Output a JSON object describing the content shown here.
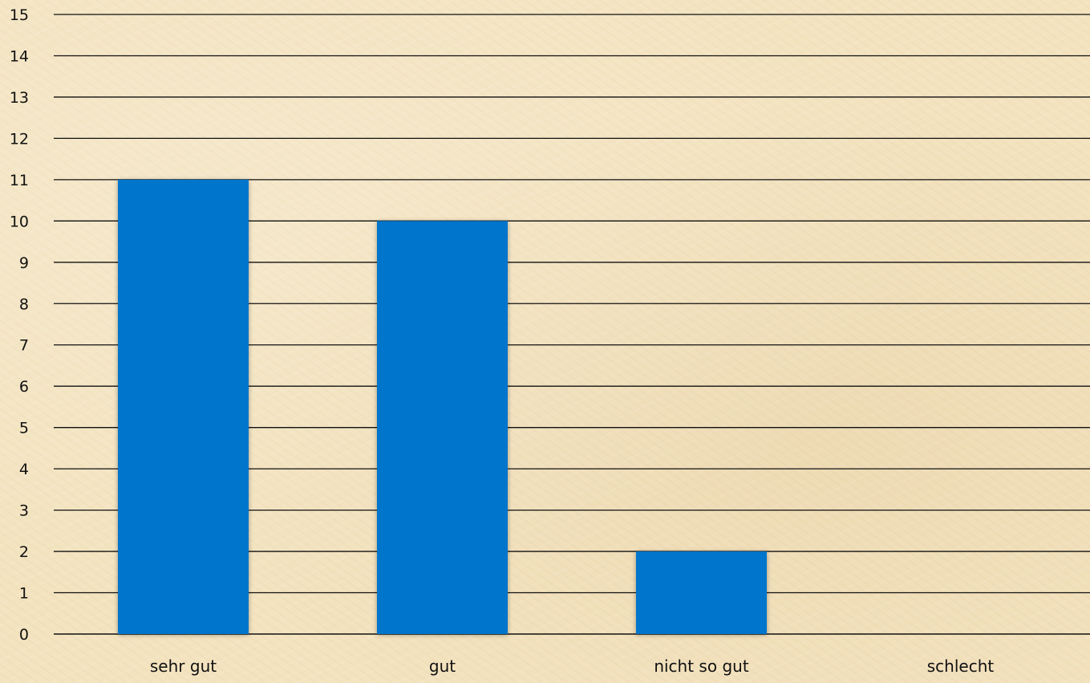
{
  "chart_data": {
    "type": "bar",
    "categories": [
      "sehr gut",
      "gut",
      "nicht so gut",
      "schlecht"
    ],
    "values": [
      11,
      10,
      2,
      0
    ],
    "ylim": [
      0,
      15
    ],
    "yticks": [
      0,
      1,
      2,
      3,
      4,
      5,
      6,
      7,
      8,
      9,
      10,
      11,
      12,
      13,
      14,
      15
    ],
    "grid": true,
    "legend": "none",
    "colors": {
      "bar": "#0075cc",
      "grid": "#111111",
      "text": "#111111",
      "background": "#f3e3bf"
    }
  }
}
